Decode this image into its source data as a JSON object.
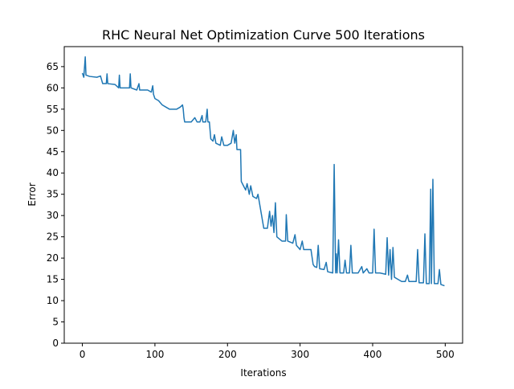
{
  "chart_data": {
    "type": "line",
    "title": "RHC Neural Net Optimization Curve 500 Iterations",
    "x_label": "Iterations",
    "y_label": "Error",
    "series": [
      {
        "name": "Error",
        "color": "#1f77b4",
        "x": [
          0,
          1,
          2,
          4,
          5,
          10,
          20,
          25,
          28,
          33,
          34,
          35,
          45,
          50,
          51,
          52,
          60,
          65,
          66,
          67,
          75,
          78,
          79,
          90,
          95,
          97,
          98,
          100,
          105,
          110,
          115,
          120,
          130,
          135,
          138,
          139,
          140,
          141,
          150,
          155,
          158,
          162,
          165,
          166,
          170,
          172,
          173,
          175,
          177,
          180,
          182,
          184,
          190,
          192,
          195,
          200,
          205,
          208,
          210,
          212,
          213,
          218,
          219,
          222,
          225,
          227,
          230,
          232,
          235,
          240,
          242,
          244,
          250,
          255,
          258,
          260,
          262,
          264,
          266,
          268,
          275,
          280,
          281,
          283,
          290,
          293,
          295,
          300,
          303,
          305,
          310,
          315,
          318,
          320,
          323,
          325,
          327,
          333,
          336,
          338,
          345,
          347,
          349,
          350,
          351,
          353,
          355,
          360,
          362,
          364,
          368,
          370,
          372,
          380,
          385,
          387,
          392,
          395,
          400,
          402,
          404,
          410,
          418,
          420,
          422,
          424,
          426,
          428,
          430,
          435,
          440,
          445,
          448,
          450,
          455,
          460,
          462,
          464,
          470,
          472,
          474,
          478,
          480,
          481,
          483,
          485,
          490,
          492,
          494,
          499
        ],
        "values": [
          63.5,
          63,
          62.5,
          67.3,
          63,
          62.7,
          62.5,
          62.8,
          61,
          61,
          63.3,
          61,
          60.8,
          60,
          63,
          60,
          60,
          60,
          63.3,
          60,
          59.5,
          61,
          59.5,
          59.5,
          59,
          60.5,
          58.5,
          57.5,
          57,
          56,
          55.5,
          55,
          55,
          55.5,
          56,
          55,
          53,
          52,
          52,
          53,
          52,
          52,
          53.5,
          52,
          52,
          55,
          52,
          52,
          48,
          47.5,
          49,
          47,
          46.5,
          48.5,
          46.5,
          46.5,
          47,
          50,
          47,
          49,
          45.5,
          45.5,
          38,
          37,
          36,
          37.5,
          35,
          37,
          34.5,
          34,
          35,
          33,
          27,
          27,
          31,
          27.5,
          30,
          26,
          33,
          25,
          24,
          24,
          30.2,
          24,
          23.5,
          25.5,
          23,
          22,
          24,
          22,
          22,
          22,
          18.5,
          18,
          17.8,
          23,
          17.5,
          17.3,
          19,
          16.8,
          16.5,
          42,
          16.5,
          21,
          16.5,
          24.3,
          16.5,
          16.5,
          19.5,
          16.5,
          16.5,
          23,
          16.5,
          16.5,
          18,
          16.5,
          17.5,
          16.5,
          16.5,
          26.8,
          16.5,
          16.5,
          16.2,
          24.8,
          16,
          22,
          15,
          22.5,
          15.5,
          15,
          14.5,
          14.5,
          16,
          14.5,
          14.5,
          14.5,
          22,
          14.2,
          14.2,
          25.7,
          14,
          14,
          36.2,
          14,
          38.5,
          14,
          14,
          17.3,
          13.8,
          13.5
        ]
      }
    ],
    "xlim": [
      -24.95,
      523.95
    ],
    "ylim": [
      0,
      69.7
    ],
    "xticks": [
      0,
      100,
      200,
      300,
      400,
      500
    ],
    "yticks": [
      0,
      5,
      10,
      15,
      20,
      25,
      30,
      35,
      40,
      45,
      50,
      55,
      60,
      65
    ]
  }
}
